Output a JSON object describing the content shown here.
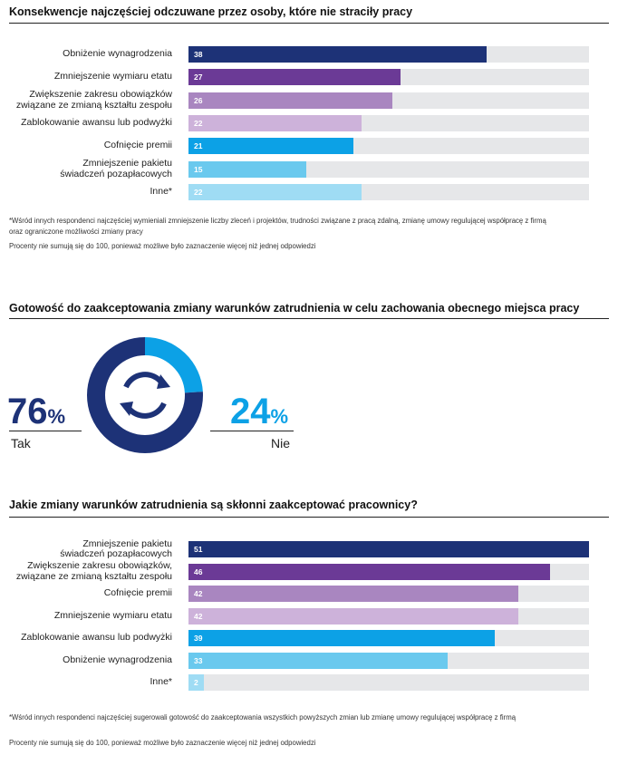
{
  "section1": {
    "title": "Konsekwencje najczęściej odczuwane przez osoby, które nie straciły pracy",
    "note1": "*Wśród innych respondenci najczęściej wymieniali zmniejszenie liczby zleceń i projektów, trudności związane z pracą zdalną, zmianę umowy regulującej współpracę z firmą oraz ograniczone możliwości zmiany pracy",
    "note2": "Procenty nie sumują się do 100, ponieważ możliwe było zaznaczenie więcej niż jednej odpowiedzi"
  },
  "section2": {
    "title": "Gotowość do zaakceptowania zmiany warunków zatrudnienia w celu zachowania obecnego miejsca pracy",
    "yes_value": "76",
    "yes_pct_sign": "%",
    "yes_label": "Tak",
    "no_value": "24",
    "no_pct_sign": "%",
    "no_label": "Nie",
    "icon": "refresh-arrows-icon"
  },
  "section3": {
    "title": "Jakie zmiany warunków zatrudnienia są skłonni zaakceptować pracownicy?",
    "note1": "*Wśród innych respondenci najczęściej sugerowali gotowość do zaakceptowania wszystkich powyższych zmian lub zmianę umowy regulującej współpracę z firmą",
    "note2": "Procenty nie sumują się do 100, ponieważ możliwe było zaznaczenie więcej niż jednej odpowiedzi"
  },
  "colors": {
    "track": "#e6e7e9",
    "navy": "#1d3277",
    "purple": "#6b3a96",
    "mauve": "#a986c0",
    "lilac": "#cdb2da",
    "blue": "#0ca1e6",
    "sky": "#6ac9ee",
    "pale": "#9fdcf4",
    "donut_yes": "#1d3277",
    "donut_no": "#0ca1e6",
    "yes_text": "#1d3277",
    "no_text": "#0ca1e6"
  },
  "chart_data": [
    {
      "type": "bar",
      "orientation": "horizontal",
      "title": "Konsekwencje najczęściej odczuwane przez osoby, które nie straciły pracy",
      "categories": [
        [
          "Obniżenie wynagrodzenia"
        ],
        [
          "Zmniejszenie wymiaru etatu"
        ],
        [
          "Zwiększenie zakresu obowiązków",
          "związane ze zmianą kształtu zespołu"
        ],
        [
          "Zablokowanie awansu lub podwyżki"
        ],
        [
          "Cofnięcie premii"
        ],
        [
          "Zmniejszenie pakietu",
          "świadczeń pozapłacowych"
        ],
        [
          "Inne*"
        ]
      ],
      "values": [
        38,
        27,
        26,
        22,
        21,
        15,
        22
      ],
      "value_labels": [
        "38",
        "27",
        "26",
        "22",
        "21",
        "15",
        "22"
      ],
      "colors": [
        "#1d3277",
        "#6b3a96",
        "#a986c0",
        "#cdb2da",
        "#0ca1e6",
        "#6ac9ee",
        "#9fdcf4"
      ],
      "xlim": [
        0,
        51
      ]
    },
    {
      "type": "pie",
      "donut": true,
      "labels": [
        "Tak",
        "Nie"
      ],
      "values": [
        76,
        24
      ],
      "colors": [
        "#1d3277",
        "#0ca1e6"
      ]
    },
    {
      "type": "bar",
      "orientation": "horizontal",
      "title": "Jakie zmiany warunków zatrudnienia są skłonni zaakceptować pracownicy?",
      "categories": [
        [
          "Zmniejszenie pakietu",
          "świadczeń pozapłacowych"
        ],
        [
          "Zwiększenie zakresu obowiązków,",
          "związane ze zmianą kształtu zespołu"
        ],
        [
          "Cofnięcie premii"
        ],
        [
          "Zmniejszenie wymiaru etatu"
        ],
        [
          "Zablokowanie awansu lub podwyżki"
        ],
        [
          "Obniżenie wynagrodzenia"
        ],
        [
          "Inne*"
        ]
      ],
      "values": [
        51,
        46,
        42,
        42,
        39,
        33,
        2
      ],
      "value_labels": [
        "51",
        "46",
        "42",
        "42",
        "39",
        "33",
        "2"
      ],
      "colors": [
        "#1d3277",
        "#6b3a96",
        "#a986c0",
        "#cdb2da",
        "#0ca1e6",
        "#6ac9ee",
        "#9fdcf4"
      ],
      "xlim": [
        0,
        51
      ]
    }
  ]
}
